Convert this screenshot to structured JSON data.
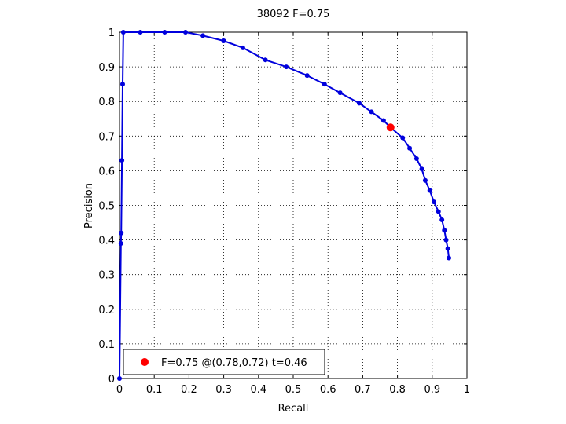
{
  "chart_data": {
    "type": "line",
    "title": "38092 F=0.75",
    "xlabel": "Recall",
    "ylabel": "Precision",
    "xlim": [
      0,
      1
    ],
    "ylim": [
      0,
      1
    ],
    "grid": true,
    "x_ticks": [
      0,
      0.1,
      0.2,
      0.3,
      0.4,
      0.5,
      0.6,
      0.7,
      0.8,
      0.9,
      1
    ],
    "y_ticks": [
      0,
      0.1,
      0.2,
      0.3,
      0.4,
      0.5,
      0.6,
      0.7,
      0.8,
      0.9,
      1
    ],
    "tick_labels_x": [
      "0",
      "0.1",
      "0.2",
      "0.3",
      "0.4",
      "0.5",
      "0.6",
      "0.7",
      "0.8",
      "0.9",
      "1"
    ],
    "tick_labels_y": [
      "0",
      "0.1",
      "0.2",
      "0.3",
      "0.4",
      "0.5",
      "0.6",
      "0.7",
      "0.8",
      "0.9",
      "1"
    ],
    "series": [
      {
        "color": "#0000dd",
        "marker": "dot",
        "points": [
          [
            0,
            0
          ],
          [
            0.004,
            0.39
          ],
          [
            0.005,
            0.42
          ],
          [
            0.007,
            0.63
          ],
          [
            0.009,
            0.85
          ],
          [
            0.011,
            1
          ],
          [
            0.06,
            1
          ],
          [
            0.13,
            1
          ],
          [
            0.19,
            1
          ],
          [
            0.24,
            0.99
          ],
          [
            0.3,
            0.975
          ],
          [
            0.355,
            0.955
          ],
          [
            0.42,
            0.92
          ],
          [
            0.48,
            0.9
          ],
          [
            0.54,
            0.875
          ],
          [
            0.59,
            0.85
          ],
          [
            0.635,
            0.825
          ],
          [
            0.69,
            0.795
          ],
          [
            0.725,
            0.77
          ],
          [
            0.76,
            0.745
          ],
          [
            0.78,
            0.725
          ],
          [
            0.815,
            0.695
          ],
          [
            0.835,
            0.665
          ],
          [
            0.855,
            0.635
          ],
          [
            0.87,
            0.605
          ],
          [
            0.88,
            0.572
          ],
          [
            0.893,
            0.543
          ],
          [
            0.905,
            0.51
          ],
          [
            0.918,
            0.482
          ],
          [
            0.928,
            0.458
          ],
          [
            0.935,
            0.428
          ],
          [
            0.94,
            0.4
          ],
          [
            0.945,
            0.375
          ],
          [
            0.948,
            0.348
          ]
        ]
      }
    ],
    "highlight": {
      "x": 0.78,
      "y": 0.725,
      "color": "#ff0000"
    },
    "legend": {
      "placement": "bottom-left",
      "label": "F=0.75 @(0.78,0.72) t=0.46",
      "color": "#ff0000"
    }
  }
}
